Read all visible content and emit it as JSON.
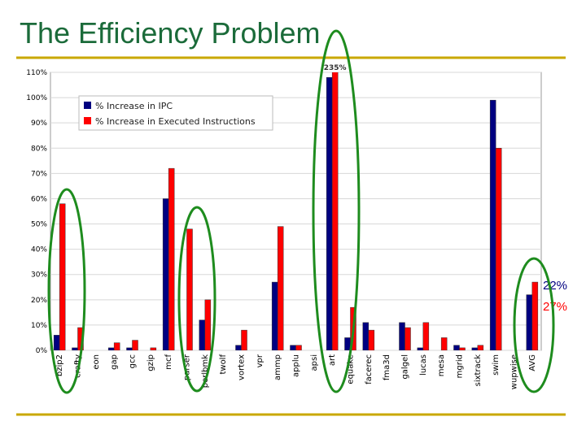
{
  "chart_data": {
    "type": "bar",
    "title": "The Efficiency Problem",
    "categories": [
      "bzip2",
      "crafty",
      "eon",
      "gap",
      "gcc",
      "gzip",
      "mcf",
      "parser",
      "perlbmk",
      "twolf",
      "vortex",
      "vpr",
      "ammp",
      "applu",
      "apsi",
      "art",
      "equake",
      "facerec",
      "fma3d",
      "galgel",
      "lucas",
      "mesa",
      "mgrid",
      "sixtrack",
      "swim",
      "wupwise",
      "AVG"
    ],
    "series": [
      {
        "name": "% Increase in IPC",
        "color": "#000080",
        "values": [
          6,
          1,
          0,
          1,
          1,
          0,
          60,
          0,
          12,
          0,
          2,
          0,
          27,
          2,
          0,
          108,
          5,
          11,
          0,
          11,
          1,
          0,
          2,
          1,
          99,
          0,
          22
        ],
        "value_labels": [
          null,
          null,
          null,
          null,
          null,
          null,
          null,
          null,
          null,
          null,
          null,
          null,
          null,
          null,
          null,
          null,
          null,
          null,
          null,
          null,
          null,
          null,
          null,
          null,
          null,
          null,
          "22%"
        ]
      },
      {
        "name": "% Increase in Executed Instructions",
        "color": "#ff0000",
        "values": [
          58,
          9,
          0,
          3,
          4,
          1,
          72,
          48,
          20,
          0,
          8,
          0,
          49,
          2,
          0,
          235,
          17,
          8,
          0,
          9,
          11,
          5,
          1,
          2,
          80,
          0,
          27
        ],
        "value_labels": [
          null,
          null,
          null,
          null,
          null,
          null,
          null,
          null,
          null,
          null,
          null,
          null,
          null,
          null,
          null,
          "235%",
          null,
          null,
          null,
          null,
          null,
          null,
          null,
          null,
          null,
          null,
          "27%"
        ]
      }
    ],
    "ylim": [
      0,
      110
    ],
    "yticks": [
      {
        "value": 0,
        "label": "0%"
      },
      {
        "value": 10,
        "label": "10%"
      },
      {
        "value": 20,
        "label": "20%"
      },
      {
        "value": 30,
        "label": "30%"
      },
      {
        "value": 40,
        "label": "40%"
      },
      {
        "value": 50,
        "label": "50%"
      },
      {
        "value": 60,
        "label": "60%"
      },
      {
        "value": 70,
        "label": "70%"
      },
      {
        "value": 80,
        "label": "80%"
      },
      {
        "value": 90,
        "label": "90%"
      },
      {
        "value": 100,
        "label": "100%"
      },
      {
        "value": 110,
        "label": "110%"
      }
    ],
    "grid": true,
    "legend": "upper left"
  }
}
